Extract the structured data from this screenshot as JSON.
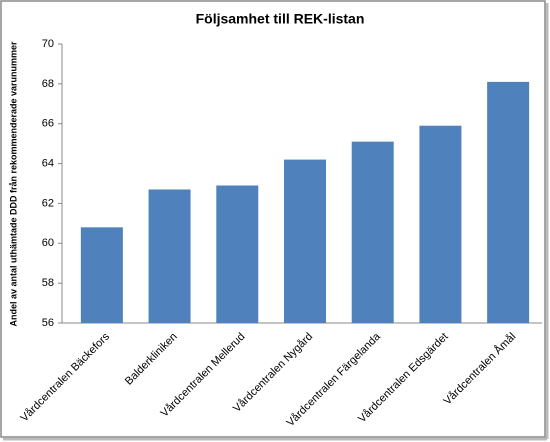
{
  "chart_data": {
    "type": "bar",
    "title": "Följsamhet till REK-listan",
    "y_label": "Andel av antal uthämtade DDD från rekommenderade varunummer",
    "categories": [
      "Vårdcentralen Bäckefors",
      "Balderkliniken",
      "Vårdcentralen Mellerud",
      "Vårdcentralen Nygård",
      "Vårdcentralen Färgelanda",
      "Vårdcentralen Edsgärdet",
      "Vårdcentralen Åmål"
    ],
    "values": [
      60.8,
      62.7,
      62.9,
      64.2,
      65.1,
      65.9,
      68.1
    ],
    "color": "#4f81bd",
    "ylim": [
      56,
      70
    ],
    "yticks": [
      56,
      58,
      60,
      62,
      64,
      66,
      68,
      70
    ],
    "grid": false
  }
}
